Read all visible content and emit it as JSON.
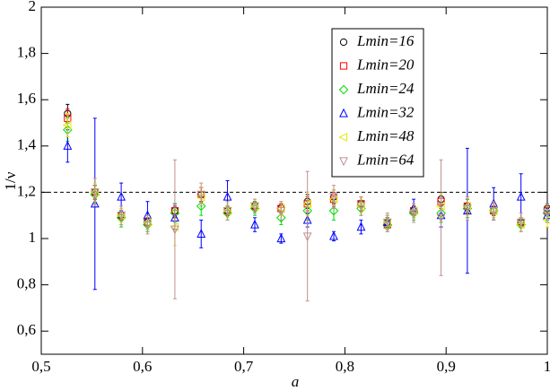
{
  "chart_data": {
    "type": "scatter",
    "x_label": "a",
    "y_label": "1/ν",
    "x": [
      0.526,
      0.553,
      0.579,
      0.605,
      0.632,
      0.658,
      0.684,
      0.711,
      0.737,
      0.763,
      0.789,
      0.816,
      0.842,
      0.868,
      0.895,
      0.921,
      0.947,
      0.974,
      1.0
    ],
    "series": [
      {
        "name": "Lmin=16",
        "color": "#000000",
        "marker": "circle",
        "values": [
          1.54,
          1.2,
          1.1,
          1.07,
          1.12,
          1.19,
          1.12,
          1.14,
          1.13,
          1.16,
          1.18,
          1.15,
          1.07,
          1.12,
          1.17,
          1.14,
          1.12,
          1.07,
          1.13
        ],
        "errors": [
          0.04,
          0.03,
          0.02,
          0.02,
          0.03,
          0.03,
          0.02,
          0.02,
          0.02,
          0.03,
          0.03,
          0.03,
          0.02,
          0.02,
          0.03,
          0.03,
          0.02,
          0.02,
          0.02
        ]
      },
      {
        "name": "Lmin=20",
        "color": "#ff0000",
        "marker": "square",
        "values": [
          1.52,
          1.2,
          1.1,
          1.07,
          1.12,
          1.19,
          1.12,
          1.14,
          1.13,
          1.15,
          1.17,
          1.15,
          1.06,
          1.12,
          1.16,
          1.14,
          1.12,
          1.07,
          1.12
        ],
        "errors": [
          0.04,
          0.03,
          0.02,
          0.02,
          0.03,
          0.03,
          0.02,
          0.02,
          0.02,
          0.03,
          0.03,
          0.03,
          0.02,
          0.02,
          0.03,
          0.03,
          0.02,
          0.02,
          0.02
        ]
      },
      {
        "name": "Lmin=24",
        "color": "#00dd00",
        "marker": "diamond",
        "values": [
          1.47,
          1.19,
          1.09,
          1.06,
          1.11,
          1.14,
          1.11,
          1.13,
          1.09,
          1.12,
          1.12,
          1.13,
          1.06,
          1.11,
          1.11,
          1.13,
          1.12,
          1.06,
          1.11
        ],
        "errors": [
          0.05,
          0.04,
          0.04,
          0.03,
          0.04,
          0.04,
          0.03,
          0.03,
          0.03,
          0.04,
          0.04,
          0.03,
          0.03,
          0.03,
          0.04,
          0.04,
          0.03,
          0.03,
          0.03
        ]
      },
      {
        "name": "Lmin=32",
        "color": "#0000ff",
        "marker": "triangle-up",
        "values": [
          1.4,
          1.15,
          1.18,
          1.1,
          1.09,
          1.02,
          1.18,
          1.06,
          1.0,
          1.08,
          1.01,
          1.05,
          1.07,
          1.13,
          1.1,
          1.12,
          1.15,
          1.18,
          1.1
        ],
        "errors": [
          0.07,
          0.37,
          0.06,
          0.06,
          0.05,
          0.06,
          0.07,
          0.03,
          0.02,
          0.03,
          0.02,
          0.03,
          0.03,
          0.04,
          0.05,
          0.27,
          0.07,
          0.1,
          0.03
        ]
      },
      {
        "name": "Lmin=48",
        "color": "#e6e600",
        "marker": "triangle-left",
        "values": [
          1.49,
          1.2,
          1.1,
          1.07,
          1.05,
          1.18,
          1.12,
          1.14,
          1.13,
          1.15,
          1.17,
          1.14,
          1.07,
          1.12,
          1.14,
          1.14,
          1.12,
          1.06,
          1.08
        ],
        "errors": [
          0.05,
          0.04,
          0.03,
          0.03,
          0.08,
          0.04,
          0.03,
          0.03,
          0.03,
          0.05,
          0.04,
          0.03,
          0.03,
          0.03,
          0.05,
          0.04,
          0.03,
          0.03,
          0.03
        ]
      },
      {
        "name": "Lmin=64",
        "color": "#c09090",
        "marker": "triangle-down",
        "values": [
          null,
          1.2,
          1.1,
          1.06,
          1.04,
          1.19,
          1.12,
          1.14,
          1.12,
          1.01,
          1.18,
          1.14,
          1.07,
          1.11,
          1.09,
          1.13,
          1.12,
          1.07,
          1.11
        ],
        "errors": [
          null,
          0.06,
          0.04,
          0.04,
          0.3,
          0.05,
          0.04,
          0.03,
          0.04,
          0.28,
          0.05,
          0.04,
          0.04,
          0.04,
          0.25,
          0.05,
          0.04,
          0.04,
          0.04
        ]
      }
    ],
    "xlim": [
      0.5,
      1.0
    ],
    "xticks": [
      {
        "value": 0.5,
        "label": "0,5"
      },
      {
        "value": 0.6,
        "label": "0,6"
      },
      {
        "value": 0.7,
        "label": "0,7"
      },
      {
        "value": 0.8,
        "label": "0,8"
      },
      {
        "value": 0.9,
        "label": "0,9"
      },
      1
    ],
    "ylim": [
      0.5,
      2.0
    ],
    "yticks": [
      {
        "value": 0.6,
        "label": "0,6"
      },
      {
        "value": 0.8,
        "label": "0,8"
      },
      1,
      {
        "value": 1.2,
        "label": "1,2"
      },
      {
        "value": 1.4,
        "label": "1,4"
      },
      {
        "value": 1.6,
        "label": "1,6"
      },
      {
        "value": 1.8,
        "label": "1,8"
      },
      2
    ],
    "hline": 1.2,
    "legend": "upper-right"
  }
}
